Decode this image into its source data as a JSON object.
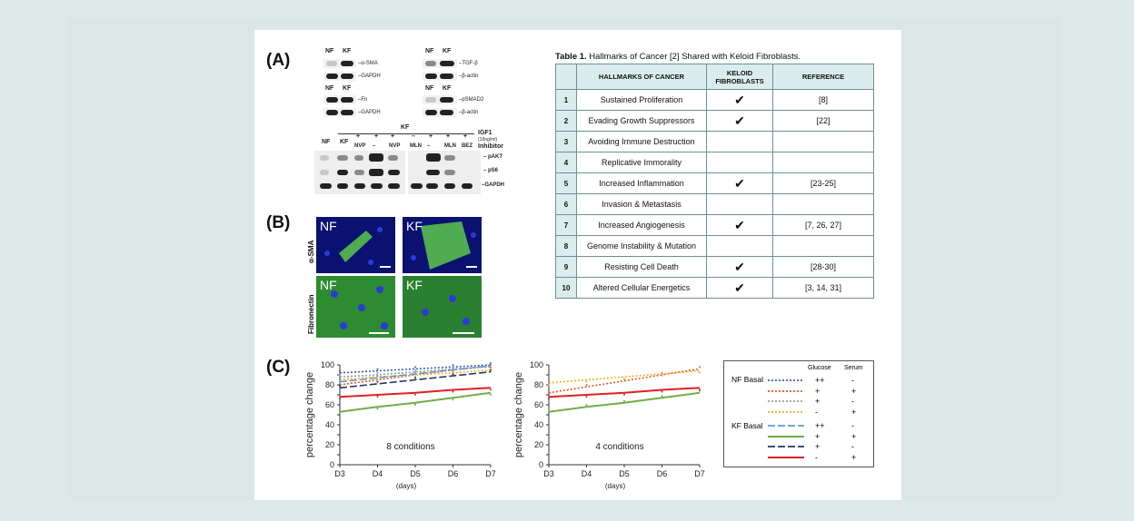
{
  "panel_labels": {
    "a": "(A)",
    "b": "(B)",
    "c": "(C)"
  },
  "blots": {
    "top_left": {
      "cols": [
        "NF",
        "KF"
      ],
      "rows": [
        "–α-SMA",
        "–GAPDH"
      ]
    },
    "top_right": {
      "cols": [
        "NF",
        "KF"
      ],
      "rows": [
        "–TGF-β",
        "–β-actin"
      ]
    },
    "mid_left": {
      "cols": [
        "NF",
        "KF"
      ],
      "rows": [
        "–Fn",
        "–GAPDH"
      ]
    },
    "mid_right": {
      "cols": [
        "NF",
        "KF"
      ],
      "rows": [
        "–pSMAD2",
        "–β-actin"
      ]
    },
    "bottom": {
      "kf_label": "KF",
      "igf_label": "IGF1",
      "igf_conc": "(10ng/ml)",
      "inhibitor_label": "Inhibitor",
      "nf_label": "NF",
      "kf_col": "KF",
      "plus_row": [
        "",
        "",
        "+",
        "+",
        "+",
        "–",
        "+",
        "+",
        "+"
      ],
      "inhib_row": [
        "",
        "",
        "NVP",
        "–",
        "NVP",
        "MLN",
        "–",
        "MLN",
        "BEZ"
      ],
      "rows": [
        "– pAKT",
        "– pS6",
        "–GAPDH"
      ]
    }
  },
  "micrographs": {
    "row1_label": "α-SMA",
    "row2_label": "Fibronectin",
    "tags": [
      "NF",
      "KF",
      "NF",
      "KF"
    ]
  },
  "table": {
    "title_bold": "Table 1.",
    "title_rest": " Hallmarks of Cancer [2] Shared with Keloid Fibroblasts.",
    "headers": [
      "",
      "HALLMARKS OF CANCER",
      "KELOID FIBROBLASTS",
      "REFERENCE"
    ],
    "rows": [
      {
        "num": "1",
        "hallmark": "Sustained Proliferation",
        "check": "✔",
        "ref": "[8]"
      },
      {
        "num": "2",
        "hallmark": "Evading Growth Suppressors",
        "check": "✔",
        "ref": "[22]"
      },
      {
        "num": "3",
        "hallmark": "Avoiding Immune Destruction",
        "check": "",
        "ref": ""
      },
      {
        "num": "4",
        "hallmark": "Replicative Immorality",
        "check": "",
        "ref": ""
      },
      {
        "num": "5",
        "hallmark": "Increased Inflammation",
        "check": "✔",
        "ref": "[23-25]"
      },
      {
        "num": "6",
        "hallmark": "Invasion & Metastasis",
        "check": "",
        "ref": ""
      },
      {
        "num": "7",
        "hallmark": "Increased Angiogenesis",
        "check": "✔",
        "ref": "[7, 26, 27]"
      },
      {
        "num": "8",
        "hallmark": "Genome Instability & Mutation",
        "check": "",
        "ref": ""
      },
      {
        "num": "9",
        "hallmark": "Resisting Cell Death",
        "check": "✔",
        "ref": "[28-30]"
      },
      {
        "num": "10",
        "hallmark": "Altered Cellular Energetics",
        "check": "✔",
        "ref": "[3, 14, 31]"
      }
    ]
  },
  "chart_data": [
    {
      "type": "line",
      "title": "8 conditions",
      "xlabel": "(days)",
      "ylabel": "percentage change",
      "x": [
        "D3",
        "D4",
        "D5",
        "D6",
        "D7"
      ],
      "ylim": [
        0,
        100
      ],
      "yticks": [
        0,
        10,
        20,
        30,
        40,
        50,
        60,
        70,
        80,
        90,
        100
      ],
      "series": [
        {
          "values": [
            92,
            94,
            96,
            98,
            100
          ],
          "color": "#3b5fb0",
          "dash": "2,2"
        },
        {
          "values": [
            80,
            85,
            90,
            95,
            99
          ],
          "color": "#e05a2a",
          "dash": "2,2"
        },
        {
          "values": [
            88,
            90,
            93,
            96,
            98
          ],
          "color": "#999999",
          "dash": "2,2"
        },
        {
          "values": [
            85,
            88,
            90,
            92,
            95
          ],
          "color": "#f0b020",
          "dash": "2,2"
        },
        {
          "values": [
            83,
            87,
            91,
            95,
            99
          ],
          "color": "#5b9bd5",
          "dash": "8,3"
        },
        {
          "values": [
            53,
            58,
            62,
            67,
            72
          ],
          "color": "#70ad47",
          "dash": ""
        },
        {
          "values": [
            77,
            81,
            85,
            89,
            93
          ],
          "color": "#1f3864",
          "dash": "8,3"
        },
        {
          "values": [
            68,
            70,
            72,
            75,
            77
          ],
          "color": "#e02020",
          "dash": ""
        }
      ]
    },
    {
      "type": "line",
      "title": "4 conditions",
      "xlabel": "(days)",
      "ylabel": "percentage change",
      "x": [
        "D3",
        "D4",
        "D5",
        "D6",
        "D7"
      ],
      "ylim": [
        0,
        100
      ],
      "yticks": [
        0,
        10,
        20,
        30,
        40,
        50,
        60,
        70,
        80,
        90,
        100
      ],
      "series": [
        {
          "values": [
            72,
            78,
            84,
            90,
            96
          ],
          "color": "#e05a2a",
          "dash": "2,2"
        },
        {
          "values": [
            82,
            85,
            88,
            91,
            94
          ],
          "color": "#f0b020",
          "dash": "2,2"
        },
        {
          "values": [
            53,
            58,
            62,
            67,
            72
          ],
          "color": "#70ad47",
          "dash": ""
        },
        {
          "values": [
            68,
            70,
            72,
            75,
            77
          ],
          "color": "#e02020",
          "dash": ""
        }
      ]
    }
  ],
  "legend": {
    "glucose_header": "Glucose",
    "serum_header": "Serum",
    "nf_label": "NF Basal",
    "kf_label": "KF Basal",
    "entries": [
      {
        "color": "#3b5fb0",
        "dash": "2,2",
        "glucose": "++",
        "serum": "-"
      },
      {
        "color": "#e05a2a",
        "dash": "2,2",
        "glucose": "+",
        "serum": "+"
      },
      {
        "color": "#999999",
        "dash": "2,2",
        "glucose": "+",
        "serum": "-"
      },
      {
        "color": "#f0b020",
        "dash": "2,2",
        "glucose": "-",
        "serum": "+"
      },
      {
        "color": "#5b9bd5",
        "dash": "8,3",
        "glucose": "++",
        "serum": "-"
      },
      {
        "color": "#70ad47",
        "dash": "",
        "glucose": "+",
        "serum": "+"
      },
      {
        "color": "#1f3864",
        "dash": "8,3",
        "glucose": "+",
        "serum": "-"
      },
      {
        "color": "#e02020",
        "dash": "",
        "glucose": "-",
        "serum": "+"
      }
    ]
  }
}
